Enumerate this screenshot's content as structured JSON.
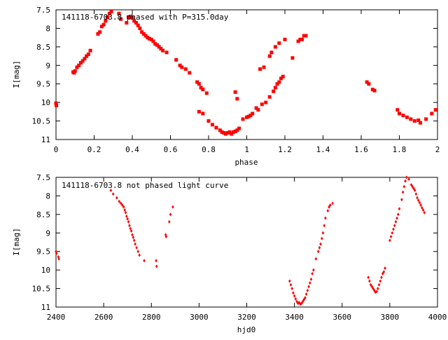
{
  "chart_data": [
    {
      "type": "scatter",
      "title": "141118-6703.8 phased with P=315.0day",
      "xlabel": "phase",
      "ylabel": "I[mag]",
      "xlim": [
        0,
        2
      ],
      "ylim": [
        7.5,
        11
      ],
      "y_inverted": true,
      "grid": false,
      "x_ticks": [
        "0",
        "0.2",
        "0.4",
        "0.6",
        "0.8",
        "1",
        "1.2",
        "1.4",
        "1.6",
        "1.8",
        "2"
      ],
      "y_ticks": [
        "7.5",
        "8",
        "8.5",
        "9",
        "9.5",
        "10",
        "10.5",
        "11"
      ],
      "marker": "filled-square",
      "color": "#ff0000",
      "series": [
        {
          "x": [
            0.0,
            0.002,
            0.09,
            0.095,
            0.1,
            0.11,
            0.12,
            0.13,
            0.14,
            0.15,
            0.16,
            0.17,
            0.18,
            0.22,
            0.23,
            0.24,
            0.25,
            0.26,
            0.27,
            0.28,
            0.29,
            0.33,
            0.34,
            0.37,
            0.38,
            0.39,
            0.4,
            0.41,
            0.42,
            0.43,
            0.44,
            0.45,
            0.46,
            0.47,
            0.48,
            0.49,
            0.5,
            0.51,
            0.52,
            0.53,
            0.54,
            0.55,
            0.56,
            0.58,
            0.63,
            0.65,
            0.66,
            0.68,
            0.7,
            0.74,
            0.75,
            0.76,
            0.77,
            0.79,
            0.75,
            0.77,
            0.8,
            0.82,
            0.84,
            0.86,
            0.87,
            0.88,
            0.89,
            0.9,
            0.91,
            0.92,
            0.93,
            0.94,
            0.95,
            0.96,
            0.94,
            0.95,
            0.98,
            1.0,
            1.01,
            1.02,
            1.03,
            1.05,
            1.06,
            1.08,
            1.1,
            1.12,
            1.14,
            1.15,
            1.16,
            1.17,
            1.18,
            1.19,
            1.07,
            1.09,
            1.12,
            1.13,
            1.15,
            1.17,
            1.2,
            1.24,
            1.27,
            1.28,
            1.29,
            1.3,
            1.31,
            1.63,
            1.64,
            1.66,
            1.67,
            1.79,
            1.8,
            1.82,
            1.84,
            1.86,
            1.88,
            1.9,
            1.91,
            1.94,
            1.97,
            1.99
          ],
          "y": [
            10.02,
            10.08,
            9.18,
            9.2,
            9.15,
            9.05,
            9.0,
            8.93,
            8.88,
            8.82,
            8.75,
            8.7,
            8.6,
            8.15,
            8.1,
            7.95,
            7.9,
            7.8,
            7.7,
            7.6,
            7.55,
            7.6,
            7.75,
            7.85,
            7.7,
            7.68,
            7.72,
            7.8,
            7.85,
            7.92,
            8.0,
            8.1,
            8.15,
            8.2,
            8.25,
            8.28,
            8.3,
            8.35,
            8.42,
            8.45,
            8.5,
            8.55,
            8.6,
            8.65,
            8.85,
            9.0,
            9.05,
            9.1,
            9.2,
            9.45,
            9.5,
            9.6,
            9.65,
            9.75,
            10.25,
            10.3,
            10.5,
            10.6,
            10.68,
            10.75,
            10.8,
            10.82,
            10.85,
            10.82,
            10.8,
            10.85,
            10.8,
            10.78,
            10.75,
            10.7,
            9.72,
            9.9,
            10.45,
            10.4,
            10.38,
            10.35,
            10.3,
            10.15,
            10.2,
            10.05,
            10.0,
            9.85,
            9.7,
            9.6,
            9.5,
            9.45,
            9.35,
            9.3,
            9.1,
            9.05,
            8.75,
            8.65,
            8.5,
            8.4,
            8.3,
            8.8,
            8.35,
            8.3,
            8.3,
            8.2,
            8.2,
            9.45,
            9.5,
            9.65,
            9.68,
            10.2,
            10.3,
            10.35,
            10.4,
            10.45,
            10.5,
            10.48,
            10.55,
            10.45,
            10.3,
            10.2
          ]
        }
      ]
    },
    {
      "type": "scatter",
      "title": "141118-6703.8 not phased light curve",
      "xlabel": "hjd0",
      "ylabel": "I[mag]",
      "xlim": [
        2400,
        4000
      ],
      "ylim": [
        7.5,
        11
      ],
      "y_inverted": true,
      "grid": false,
      "x_ticks": [
        "2400",
        "2600",
        "2800",
        "3000",
        "3200",
        "3400",
        "3600",
        "3800",
        "4000"
      ],
      "y_ticks": [
        "7.5",
        "8",
        "8.5",
        "9",
        "9.5",
        "10",
        "10.5",
        "11"
      ],
      "marker": "small-diamond",
      "color": "#ff0000",
      "series": [
        {
          "x": [
            2400,
            2402,
            2410,
            2412,
            2630,
            2640,
            2655,
            2665,
            2672,
            2678,
            2684,
            2688,
            2692,
            2696,
            2700,
            2704,
            2708,
            2712,
            2716,
            2720,
            2724,
            2728,
            2732,
            2738,
            2744,
            2750,
            2770,
            2820,
            2822,
            2860,
            2862,
            2875,
            2880,
            2890,
            3380,
            3385,
            3390,
            3395,
            3400,
            3405,
            3410,
            3415,
            3420,
            3425,
            3430,
            3435,
            3440,
            3445,
            3450,
            3455,
            3460,
            3465,
            3470,
            3475,
            3480,
            3490,
            3500,
            3505,
            3510,
            3515,
            3520,
            3525,
            3530,
            3540,
            3545,
            3550,
            3560,
            3710,
            3715,
            3720,
            3725,
            3730,
            3735,
            3740,
            3745,
            3750,
            3755,
            3760,
            3765,
            3770,
            3775,
            3780,
            3800,
            3805,
            3810,
            3815,
            3820,
            3825,
            3830,
            3835,
            3840,
            3850,
            3855,
            3860,
            3865,
            3870,
            3880,
            3890,
            3895,
            3900,
            3905,
            3910,
            3915,
            3920,
            3925,
            3930,
            3935,
            3940,
            3945
          ],
          "y": [
            9.5,
            9.55,
            9.65,
            9.7,
            7.85,
            7.95,
            8.05,
            8.15,
            8.2,
            8.25,
            8.3,
            8.38,
            8.45,
            8.55,
            8.62,
            8.7,
            8.8,
            8.88,
            8.95,
            9.05,
            9.12,
            9.2,
            9.3,
            9.4,
            9.5,
            9.6,
            9.75,
            9.75,
            9.9,
            9.05,
            9.1,
            8.7,
            8.5,
            8.3,
            10.3,
            10.4,
            10.5,
            10.62,
            10.7,
            10.78,
            10.85,
            10.9,
            10.88,
            10.92,
            10.9,
            10.85,
            10.8,
            10.75,
            10.65,
            10.55,
            10.45,
            10.35,
            10.25,
            10.1,
            10.0,
            9.7,
            9.5,
            9.4,
            9.3,
            9.15,
            9.0,
            8.8,
            8.6,
            8.4,
            8.3,
            8.25,
            8.2,
            10.2,
            10.3,
            10.4,
            10.45,
            10.5,
            10.55,
            10.6,
            10.58,
            10.5,
            10.4,
            10.3,
            10.2,
            10.1,
            10.05,
            9.95,
            9.2,
            9.1,
            9.0,
            8.9,
            8.8,
            8.7,
            8.6,
            8.5,
            8.35,
            8.1,
            7.9,
            7.75,
            7.6,
            7.5,
            7.55,
            7.7,
            7.75,
            7.8,
            7.85,
            7.95,
            8.05,
            8.12,
            8.18,
            8.25,
            8.32,
            8.38,
            8.45
          ]
        }
      ]
    }
  ]
}
